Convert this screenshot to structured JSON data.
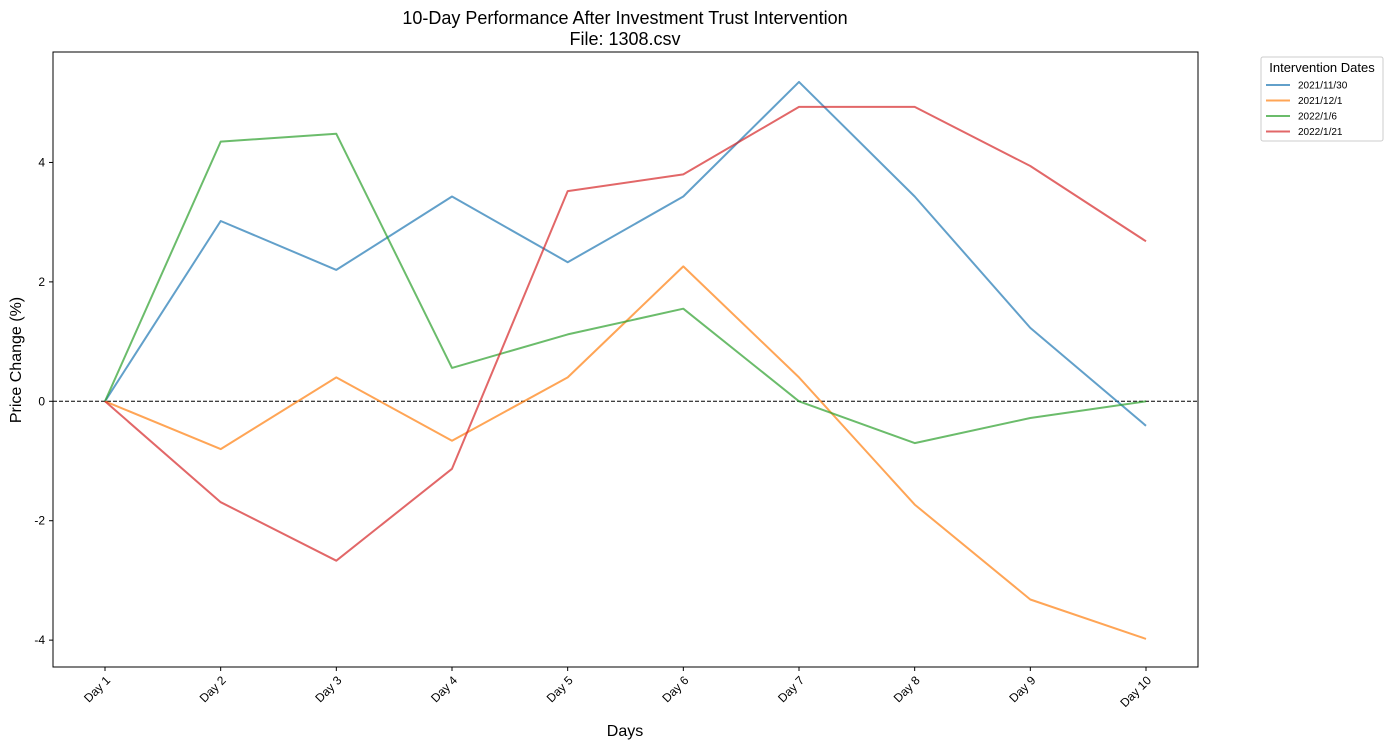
{
  "chart_data": {
    "type": "line",
    "title": "10-Day Performance After Investment Trust Intervention",
    "subtitle": "File: 1308.csv",
    "xlabel": "Days",
    "ylabel": "Price Change (%)",
    "categories": [
      "Day 1",
      "Day 2",
      "Day 3",
      "Day 4",
      "Day 5",
      "Day 6",
      "Day 7",
      "Day 8",
      "Day 9",
      "Day 10"
    ],
    "ylim": [
      -4.45,
      5.85
    ],
    "yticks": [
      -4,
      -2,
      0,
      2,
      4
    ],
    "ytick_labels": [
      "-4",
      "-2",
      "0",
      "2",
      "4"
    ],
    "zero_line": 0,
    "grid": false,
    "legend": {
      "title": "Intervention Dates",
      "placement": "outside-top-right"
    },
    "series": [
      {
        "name": "2021/11/30",
        "color": "#1f77b4",
        "values": [
          0,
          3.02,
          2.2,
          3.43,
          2.33,
          3.43,
          5.35,
          3.43,
          1.23,
          -0.41
        ]
      },
      {
        "name": "2021/12/1",
        "color": "#ff7f0e",
        "values": [
          0,
          -0.8,
          0.4,
          -0.66,
          0.4,
          2.26,
          0.4,
          -1.73,
          -3.32,
          -3.98
        ]
      },
      {
        "name": "2022/1/6",
        "color": "#2ca02c",
        "values": [
          0,
          4.35,
          4.48,
          0.56,
          1.12,
          1.55,
          0,
          -0.7,
          -0.28,
          0
        ]
      },
      {
        "name": "2022/1/21",
        "color": "#d62728",
        "values": [
          0,
          -1.69,
          -2.67,
          -1.13,
          3.52,
          3.8,
          4.93,
          4.93,
          3.94,
          2.68
        ]
      }
    ]
  }
}
